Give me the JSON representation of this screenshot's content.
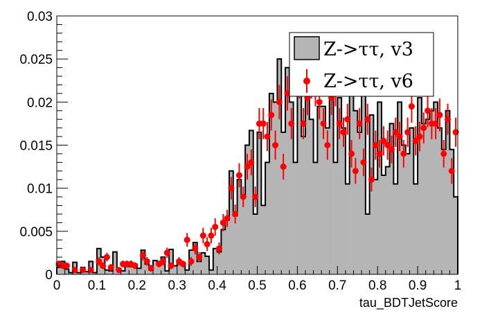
{
  "chart_data": {
    "type": "histogram",
    "title": "",
    "xlabel": "tau_BDTJetScore",
    "ylabel": "",
    "xlim": [
      0,
      1
    ],
    "ylim": [
      0,
      0.03
    ],
    "grid": false,
    "legend_position": "top-right",
    "x_ticks": [
      "0",
      "0.1",
      "0.2",
      "0.3",
      "0.4",
      "0.5",
      "0.6",
      "0.7",
      "0.8",
      "0.9",
      "1"
    ],
    "y_ticks": [
      "0",
      "0.005",
      "0.01",
      "0.015",
      "0.02",
      "0.025",
      "0.03"
    ],
    "bin_width": 0.01,
    "series": [
      {
        "name": "Z->ττ, v3",
        "style": "filled-histogram",
        "color": "#b5b5b5",
        "edge_color": "#000000",
        "values": [
          0.0008,
          0.0015,
          0.0006,
          0.0002,
          0.0014,
          0.0002,
          0.0008,
          0.0003,
          0.0015,
          0.0002,
          0.003,
          0.002,
          0.0005,
          0.0004,
          0.0026,
          0.0006,
          0.0004,
          0.001,
          0.0009,
          0.0012,
          0.0007,
          0.0028,
          0.0012,
          0.0005,
          0.0016,
          0.0012,
          0.002,
          0.0004,
          0.0029,
          0.001,
          0.0013,
          0.0013,
          0.0005,
          0.0028,
          0.0037,
          0.0015,
          0.0025,
          0.0021,
          0.0005,
          0.003,
          0.0026,
          0.0052,
          0.0063,
          0.012,
          0.0068,
          0.011,
          0.009,
          0.015,
          0.0167,
          0.007,
          0.0165,
          0.008,
          0.013,
          0.021,
          0.02,
          0.025,
          0.0165,
          0.024,
          0.02,
          0.013,
          0.025,
          0.016,
          0.024,
          0.018,
          0.013,
          0.0195,
          0.0195,
          0.017,
          0.022,
          0.013,
          0.0205,
          0.017,
          0.0105,
          0.021,
          0.019,
          0.0165,
          0.021,
          0.007,
          0.0185,
          0.011,
          0.02,
          0.0115,
          0.0125,
          0.0175,
          0.0105,
          0.02,
          0.015,
          0.014,
          0.017,
          0.0105,
          0.0205,
          0.0125,
          0.013,
          0.019,
          0.015,
          0.0215,
          0.019,
          0.0145,
          0.0155,
          0.009,
          0.0115
        ],
        "extra_bins": [
          {
            "x0": 0.91,
            "value": 0.0175
          },
          {
            "x0": 0.92,
            "value": 0.018
          },
          {
            "x0": 0.93,
            "value": 0.019
          },
          {
            "x0": 0.94,
            "value": 0.02
          },
          {
            "x0": 0.95,
            "value": 0.017
          },
          {
            "x0": 0.96,
            "value": 0.0145
          },
          {
            "x0": 0.97,
            "value": 0.019
          },
          {
            "x0": 0.98,
            "value": 0.0145
          },
          {
            "x0": 0.99,
            "value": 0.009
          }
        ]
      },
      {
        "name": "Z->ττ, v6",
        "style": "points-with-errors",
        "color": "#ff0000",
        "points": [
          [
            0.005,
            0.0012,
            0.0004
          ],
          [
            0.015,
            0.001,
            0.0004
          ],
          [
            0.025,
            0.001,
            0.0004
          ],
          [
            0.045,
            0.0005,
            0.0003
          ],
          [
            0.065,
            0.0005,
            0.0003
          ],
          [
            0.085,
            0.0005,
            0.0003
          ],
          [
            0.105,
            0.0015,
            0.0005
          ],
          [
            0.115,
            0.001,
            0.0004
          ],
          [
            0.125,
            0.002,
            0.0005
          ],
          [
            0.135,
            0.0008,
            0.0004
          ],
          [
            0.155,
            0.0005,
            0.0003
          ],
          [
            0.165,
            0.0012,
            0.0004
          ],
          [
            0.175,
            0.0012,
            0.0004
          ],
          [
            0.185,
            0.0012,
            0.0004
          ],
          [
            0.195,
            0.001,
            0.0004
          ],
          [
            0.215,
            0.0022,
            0.0006
          ],
          [
            0.225,
            0.0015,
            0.0005
          ],
          [
            0.235,
            0.0007,
            0.0004
          ],
          [
            0.255,
            0.0012,
            0.0004
          ],
          [
            0.265,
            0.0015,
            0.0005
          ],
          [
            0.275,
            0.0025,
            0.0006
          ],
          [
            0.285,
            0.001,
            0.0004
          ],
          [
            0.305,
            0.0015,
            0.0005
          ],
          [
            0.315,
            0.0012,
            0.0004
          ],
          [
            0.325,
            0.004,
            0.0008
          ],
          [
            0.335,
            0.0015,
            0.0005
          ],
          [
            0.345,
            0.003,
            0.0007
          ],
          [
            0.355,
            0.002,
            0.0006
          ],
          [
            0.365,
            0.0045,
            0.0009
          ],
          [
            0.375,
            0.0035,
            0.0008
          ],
          [
            0.385,
            0.0045,
            0.0009
          ],
          [
            0.395,
            0.0055,
            0.001
          ],
          [
            0.405,
            0.003,
            0.0007
          ],
          [
            0.415,
            0.006,
            0.001
          ],
          [
            0.425,
            0.0065,
            0.001
          ],
          [
            0.435,
            0.01,
            0.0013
          ],
          [
            0.445,
            0.007,
            0.0011
          ],
          [
            0.455,
            0.0115,
            0.0014
          ],
          [
            0.465,
            0.009,
            0.0012
          ],
          [
            0.475,
            0.0125,
            0.0015
          ],
          [
            0.485,
            0.013,
            0.0015
          ],
          [
            0.495,
            0.009,
            0.0012
          ],
          [
            0.505,
            0.0175,
            0.0018
          ],
          [
            0.515,
            0.0175,
            0.0018
          ],
          [
            0.525,
            0.016,
            0.0017
          ],
          [
            0.535,
            0.0185,
            0.0018
          ],
          [
            0.545,
            0.015,
            0.0017
          ],
          [
            0.555,
            0.02,
            0.002
          ],
          [
            0.565,
            0.0125,
            0.0015
          ],
          [
            0.575,
            0.021,
            0.002
          ],
          [
            0.585,
            0.0175,
            0.0018
          ],
          [
            0.595,
            0.023,
            0.0021
          ],
          [
            0.605,
            0.0225,
            0.0021
          ],
          [
            0.615,
            0.0175,
            0.0018
          ],
          [
            0.625,
            0.0205,
            0.002
          ],
          [
            0.635,
            0.0225,
            0.0021
          ],
          [
            0.645,
            0.0215,
            0.002
          ],
          [
            0.655,
            0.02,
            0.002
          ],
          [
            0.665,
            0.0175,
            0.0018
          ],
          [
            0.675,
            0.015,
            0.0017
          ],
          [
            0.685,
            0.0205,
            0.002
          ],
          [
            0.695,
            0.0215,
            0.002
          ],
          [
            0.705,
            0.0175,
            0.0018
          ],
          [
            0.715,
            0.0165,
            0.0017
          ],
          [
            0.725,
            0.018,
            0.0018
          ],
          [
            0.735,
            0.014,
            0.0016
          ],
          [
            0.745,
            0.012,
            0.0015
          ],
          [
            0.755,
            0.0175,
            0.0018
          ],
          [
            0.765,
            0.013,
            0.0016
          ],
          [
            0.775,
            0.018,
            0.0018
          ],
          [
            0.785,
            0.011,
            0.0014
          ],
          [
            0.795,
            0.015,
            0.0017
          ],
          [
            0.805,
            0.014,
            0.0016
          ],
          [
            0.815,
            0.0155,
            0.0017
          ],
          [
            0.825,
            0.015,
            0.0017
          ],
          [
            0.835,
            0.0145,
            0.0016
          ],
          [
            0.845,
            0.0165,
            0.0017
          ],
          [
            0.855,
            0.016,
            0.0017
          ],
          [
            0.865,
            0.014,
            0.0016
          ],
          [
            0.875,
            0.0165,
            0.0017
          ],
          [
            0.885,
            0.0195,
            0.0019
          ],
          [
            0.895,
            0.0155,
            0.0017
          ],
          [
            0.905,
            0.016,
            0.0017
          ],
          [
            0.915,
            0.017,
            0.0018
          ],
          [
            0.925,
            0.019,
            0.0019
          ],
          [
            0.935,
            0.0175,
            0.0018
          ],
          [
            0.945,
            0.0175,
            0.0018
          ],
          [
            0.955,
            0.0185,
            0.0019
          ],
          [
            0.965,
            0.014,
            0.0016
          ],
          [
            0.975,
            0.018,
            0.0018
          ],
          [
            0.985,
            0.012,
            0.0015
          ],
          [
            0.995,
            0.0165,
            0.0017
          ]
        ]
      }
    ]
  }
}
